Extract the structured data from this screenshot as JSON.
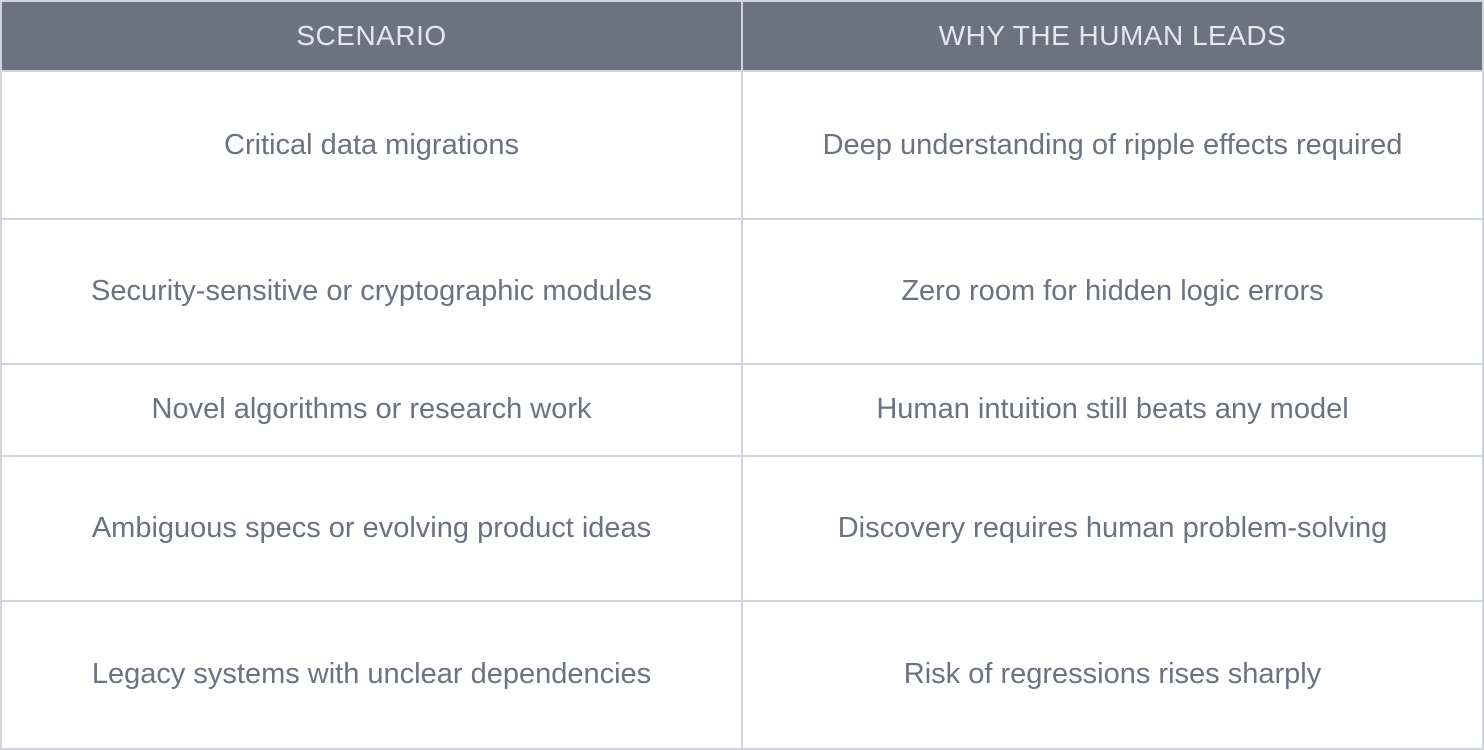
{
  "table": {
    "columns": [
      {
        "label": "SCENARIO"
      },
      {
        "label": "WHY THE HUMAN LEADS"
      }
    ],
    "rows": [
      {
        "scenario": "Critical data migrations",
        "reason": "Deep understanding of ripple effects required"
      },
      {
        "scenario": "Security-sensitive or cryptographic modules",
        "reason": "Zero room for hidden logic errors"
      },
      {
        "scenario": "Novel algorithms or research work",
        "reason": "Human intuition still beats any model"
      },
      {
        "scenario": "Ambiguous specs or evolving product ideas",
        "reason": "Discovery requires human problem-solving"
      },
      {
        "scenario": "Legacy systems with unclear dependencies",
        "reason": "Risk of regressions rises sharply"
      }
    ],
    "colors": {
      "header_bg": "#6b7280",
      "header_text": "#e5e7eb",
      "body_bg": "#ffffff",
      "body_text": "#6b7280",
      "border": "#d1d5db"
    }
  }
}
